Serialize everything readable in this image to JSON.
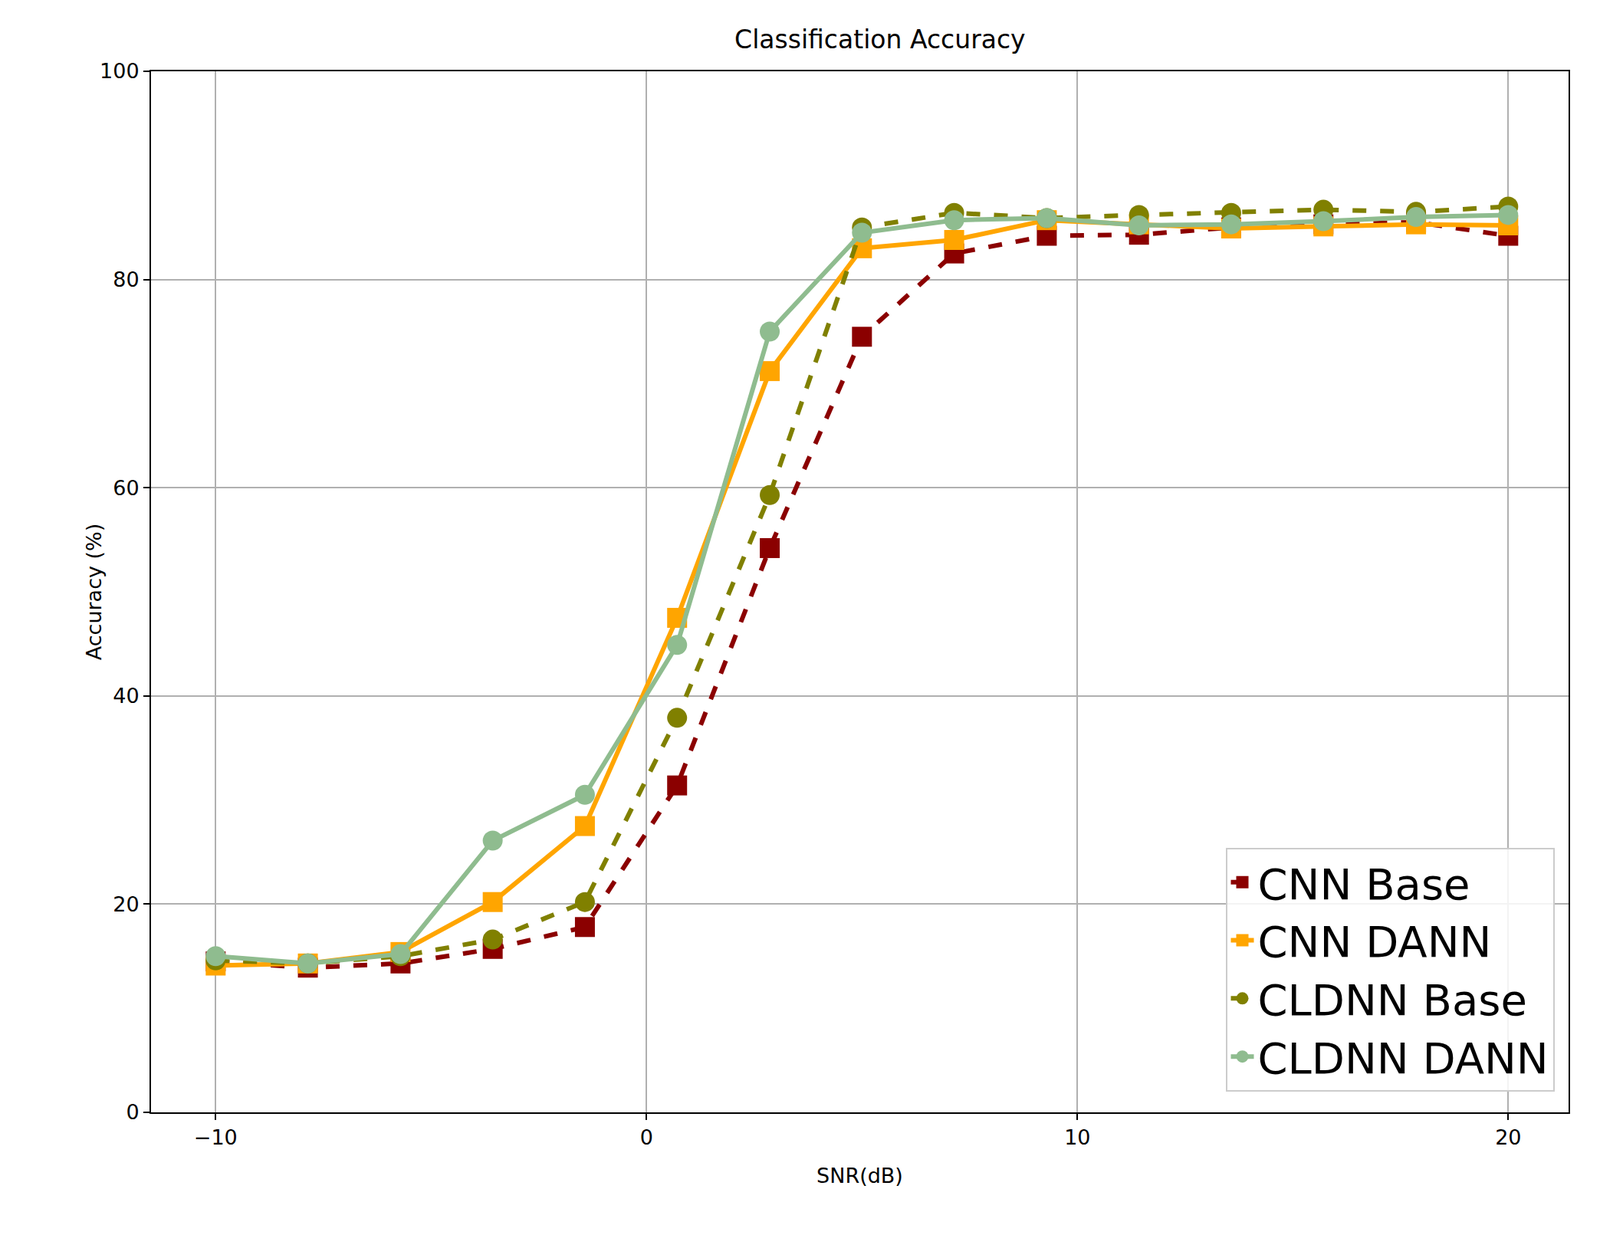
{
  "chart_data": {
    "type": "line",
    "title": "Classification Accuracy",
    "x_label": "SNR(dB)",
    "y_label": "Accuracy (%)",
    "x": [
      -10,
      -7.86,
      -5.71,
      -3.57,
      -1.43,
      0.71,
      2.86,
      5.0,
      7.14,
      9.29,
      11.43,
      13.57,
      15.71,
      17.86,
      20
    ],
    "series": [
      {
        "name": "CNN Base",
        "color": "#8b0000",
        "marker": "square",
        "line_style": "dash",
        "values": [
          14.5,
          13.9,
          14.3,
          15.7,
          17.8,
          31.4,
          54.2,
          74.5,
          82.5,
          84.2,
          84.3,
          85.0,
          85.3,
          85.5,
          84.2
        ]
      },
      {
        "name": "CNN DANN",
        "color": "#ffa500",
        "marker": "square",
        "line_style": "solid",
        "values": [
          14.1,
          14.3,
          15.4,
          20.2,
          27.5,
          47.5,
          71.2,
          83.0,
          83.8,
          85.7,
          85.3,
          84.9,
          85.1,
          85.3,
          85.2
        ]
      },
      {
        "name": "CLDNN Base",
        "color": "#808000",
        "marker": "circle",
        "line_style": "dash",
        "values": [
          14.6,
          14.3,
          15.0,
          16.6,
          20.2,
          37.9,
          59.3,
          85.0,
          86.4,
          85.9,
          86.2,
          86.4,
          86.7,
          86.5,
          87.0
        ]
      },
      {
        "name": "CLDNN DANN",
        "color": "#8fbc8f",
        "marker": "circle",
        "line_style": "solid",
        "values": [
          15.0,
          14.3,
          15.2,
          26.1,
          30.5,
          44.9,
          75.0,
          84.5,
          85.7,
          85.9,
          85.2,
          85.3,
          85.6,
          86.0,
          86.2
        ]
      }
    ],
    "xlim": [
      -11.5,
      21.4
    ],
    "xticks": [
      {
        "value": -10,
        "label": "−10"
      },
      0,
      10,
      20
    ],
    "ylim": [
      0,
      100
    ],
    "yticks": [
      0,
      20,
      40,
      60,
      80,
      100
    ],
    "grid": true,
    "legend": "lower right"
  }
}
